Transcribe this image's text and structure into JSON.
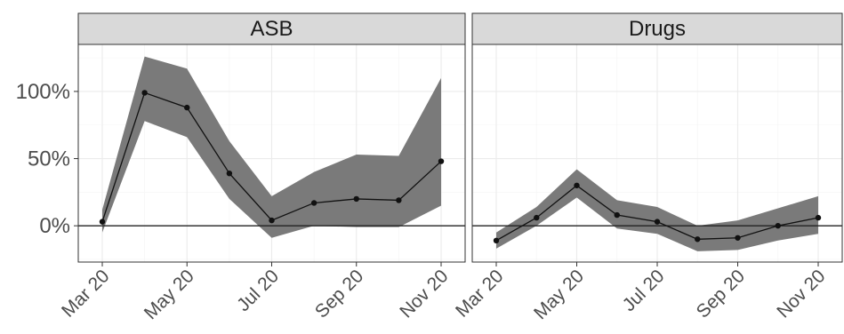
{
  "chart_data": {
    "type": "line",
    "facets": [
      {
        "name": "ASB",
        "x": [
          "Mar 20",
          "Apr 20",
          "May 20",
          "Jun 20",
          "Jul 20",
          "Aug 20",
          "Sep 20",
          "Oct 20",
          "Nov 20"
        ],
        "y": [
          3,
          99,
          88,
          39,
          4,
          17,
          20,
          19,
          48
        ],
        "lower": [
          -5,
          78,
          66,
          20,
          -9,
          0,
          -1,
          -1,
          15
        ],
        "upper": [
          12,
          126,
          117,
          63,
          22,
          40,
          53,
          52,
          110
        ]
      },
      {
        "name": "Drugs",
        "x": [
          "Mar 20",
          "Apr 20",
          "May 20",
          "Jun 20",
          "Jul 20",
          "Aug 20",
          "Sep 20",
          "Oct 20",
          "Nov 20"
        ],
        "y": [
          -11,
          6,
          30,
          8,
          3,
          -10,
          -9,
          0,
          6
        ],
        "lower": [
          -17,
          0,
          21,
          -2,
          -6,
          -19,
          -18,
          -11,
          -6
        ],
        "upper": [
          -5,
          14,
          42,
          19,
          14,
          0,
          4,
          13,
          22
        ]
      }
    ],
    "xticks": [
      "Mar 20",
      "May 20",
      "Jul 20",
      "Sep 20",
      "Nov 20"
    ],
    "yticks": [
      0,
      50,
      100
    ],
    "ytick_labels": [
      "0%",
      "50%",
      "100%"
    ],
    "ylim": [
      -27,
      135
    ],
    "xlim": [
      "Mar 20",
      "Nov 20"
    ],
    "grid": true,
    "legend": "none",
    "colors": {
      "band": "#7a7a7a",
      "line": "#111111",
      "strip": "#d9d9d9",
      "zero_line": "#222222"
    }
  }
}
